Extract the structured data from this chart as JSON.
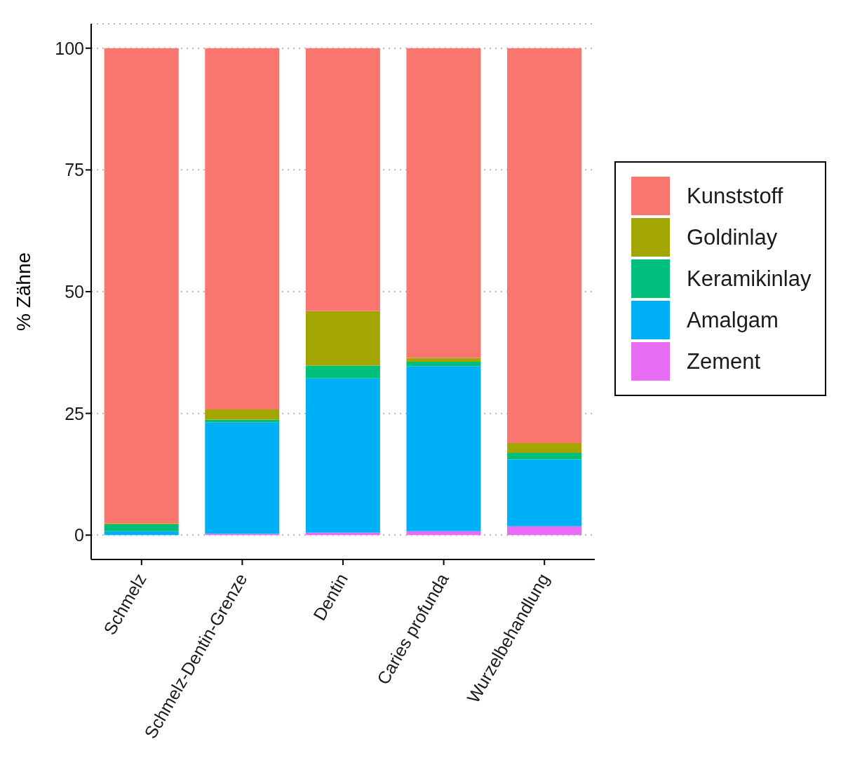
{
  "chart_data": {
    "type": "bar",
    "stacked": true,
    "ylabel": "% Zähne",
    "categories": [
      "Schmelz",
      "Schmelz-Dentin-Grenze",
      "Dentin",
      "Caries profunda",
      "Wurzelbehandlung"
    ],
    "series": [
      {
        "name": "Zement",
        "color": "#e76bf3",
        "values": [
          0,
          0.3,
          0.5,
          0.8,
          1.8
        ]
      },
      {
        "name": "Amalgam",
        "color": "#00b0f6",
        "values": [
          0.8,
          22.8,
          31.7,
          33.9,
          13.7
        ]
      },
      {
        "name": "Keramikinlay",
        "color": "#00bf7d",
        "values": [
          1.4,
          0.6,
          2.6,
          0.9,
          1.4
        ]
      },
      {
        "name": "Goldinlay",
        "color": "#a3a500",
        "values": [
          0.2,
          2.1,
          11.2,
          0.8,
          2.0
        ]
      },
      {
        "name": "Kunststoff",
        "color": "#f8766d",
        "values": [
          97.6,
          74.2,
          54.0,
          63.6,
          81.1
        ]
      }
    ],
    "ylim": [
      -5,
      105
    ],
    "yticks": [
      0,
      25,
      50,
      75,
      100
    ],
    "grid": "y",
    "legend": "right"
  }
}
